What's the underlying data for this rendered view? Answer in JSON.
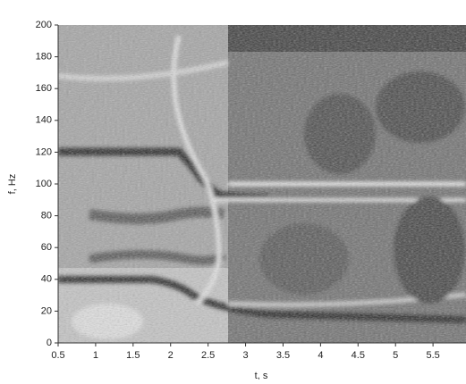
{
  "chart_data": {
    "type": "spectrogram",
    "x_label": "t, s",
    "y_label": "f, Hz",
    "xlim": [
      0.5,
      5.94
    ],
    "xticks": [
      0.5,
      1,
      1.5,
      2,
      2.5,
      3,
      3.5,
      4,
      4.5,
      5,
      5.5
    ],
    "ylim": [
      0,
      200
    ],
    "yticks": [
      0,
      20,
      40,
      60,
      80,
      100,
      120,
      140,
      160,
      180,
      200
    ]
  }
}
